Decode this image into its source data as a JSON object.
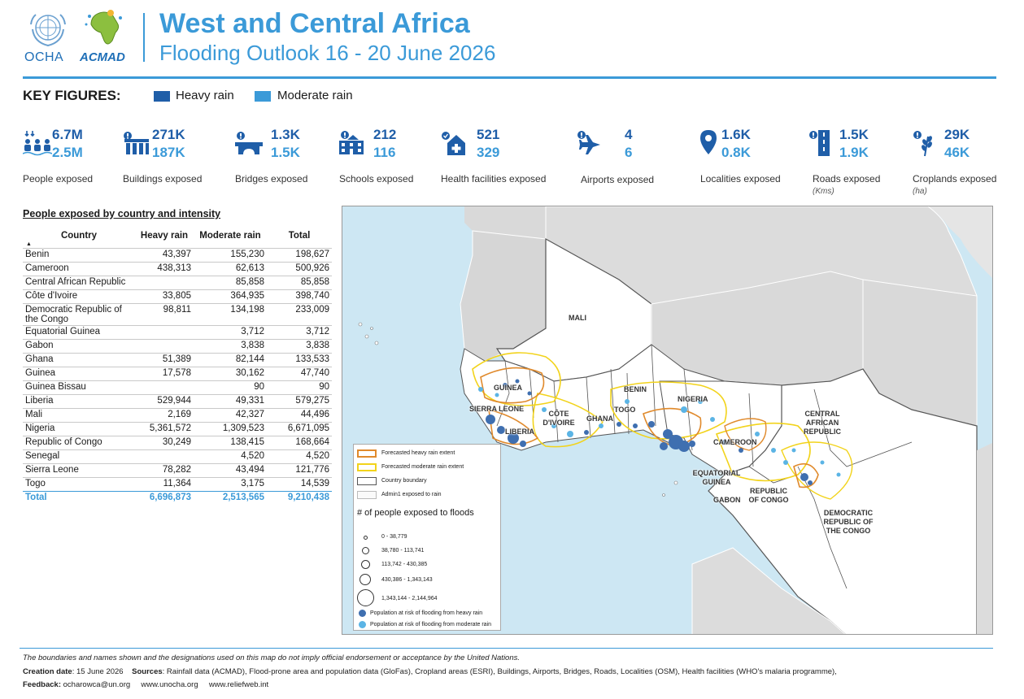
{
  "header": {
    "ocha_logo_text": "OCHA",
    "acmad_logo_text": "ACMAD",
    "title": "West and Central Africa",
    "subtitle": "Flooding Outlook 16 - 20 June 2026"
  },
  "key_figures": {
    "title": "KEY FIGURES:",
    "legend": [
      {
        "label": "Heavy rain",
        "color": "#1f5ea8"
      },
      {
        "label": "Moderate rain",
        "color": "#3b9ad8"
      }
    ],
    "items": [
      {
        "icon": "people-icon",
        "heavy": "6.7M",
        "moderate": "2.5M",
        "label": "People exposed",
        "unit": ""
      },
      {
        "icon": "building-icon",
        "heavy": "271K",
        "moderate": "187K",
        "label": "Buildings exposed",
        "unit": ""
      },
      {
        "icon": "bridge-icon",
        "heavy": "1.3K",
        "moderate": "1.5K",
        "label": "Bridges exposed",
        "unit": ""
      },
      {
        "icon": "school-icon",
        "heavy": "212",
        "moderate": "116",
        "label": "Schools exposed",
        "unit": ""
      },
      {
        "icon": "health-facility-icon",
        "heavy": "521",
        "moderate": "329",
        "label": "Health facilities exposed",
        "unit": ""
      },
      {
        "icon": "airport-icon",
        "heavy": "4",
        "moderate": "6",
        "label": "Airports exposed",
        "unit": ""
      },
      {
        "icon": "locality-pin-icon",
        "heavy": "1.6K",
        "moderate": "0.8K",
        "label": "Localities exposed",
        "unit": ""
      },
      {
        "icon": "road-icon",
        "heavy": "1.5K",
        "moderate": "1.9K",
        "label": "Roads exposed",
        "unit": "(Kms)"
      },
      {
        "icon": "cropland-icon",
        "heavy": "29K",
        "moderate": "46K",
        "label": "Croplands exposed",
        "unit": "(ha)"
      }
    ]
  },
  "table": {
    "title": "People exposed by country and intensity",
    "headers": [
      "Country",
      "Heavy rain",
      "Moderate rain",
      "Total"
    ],
    "rows": [
      [
        "Benin",
        "43,397",
        "155,230",
        "198,627"
      ],
      [
        "Cameroon",
        "438,313",
        "62,613",
        "500,926"
      ],
      [
        "Central African Republic",
        "",
        "85,858",
        "85,858"
      ],
      [
        "Côte d'Ivoire",
        "33,805",
        "364,935",
        "398,740"
      ],
      [
        "Democratic Republic of the Congo",
        "98,811",
        "134,198",
        "233,009"
      ],
      [
        "Equatorial Guinea",
        "",
        "3,712",
        "3,712"
      ],
      [
        "Gabon",
        "",
        "3,838",
        "3,838"
      ],
      [
        "Ghana",
        "51,389",
        "82,144",
        "133,533"
      ],
      [
        "Guinea",
        "17,578",
        "30,162",
        "47,740"
      ],
      [
        "Guinea Bissau",
        "",
        "90",
        "90"
      ],
      [
        "Liberia",
        "529,944",
        "49,331",
        "579,275"
      ],
      [
        "Mali",
        "2,169",
        "42,327",
        "44,496"
      ],
      [
        "Nigeria",
        "5,361,572",
        "1,309,523",
        "6,671,095"
      ],
      [
        "Republic of Congo",
        "30,249",
        "138,415",
        "168,664"
      ],
      [
        "Senegal",
        "",
        "4,520",
        "4,520"
      ],
      [
        "Sierra Leone",
        "78,282",
        "43,494",
        "121,776"
      ],
      [
        "Togo",
        "11,364",
        "3,175",
        "14,539"
      ]
    ],
    "total": [
      "Total",
      "6,696,873",
      "2,513,565",
      "9,210,438"
    ]
  },
  "map": {
    "country_labels": [
      "MALI",
      "GUINEA",
      "SIERRA LEONE",
      "LIBERIA",
      "CÔTE D'IVOIRE",
      "GHANA",
      "TOGO",
      "BENIN",
      "NIGERIA",
      "CAMEROON",
      "CENTRAL AFRICAN REPUBLIC",
      "EQUATORIAL GUINEA",
      "GABON",
      "REPUBLIC OF CONGO",
      "DEMOCRATIC REPUBLIC OF THE CONGO"
    ],
    "legend": {
      "heavy_extent": "Forecasted heavy rain extent",
      "moderate_extent": "Forecasted moderate rain extent",
      "country_boundary": "Country boundary",
      "admin1": "Admin1 exposed to rain",
      "size_title": "# of people exposed to floods",
      "size_classes": [
        "0 - 38,779",
        "38,780 - 113,741",
        "113,742 - 430,385",
        "430,386 - 1,343,143",
        "1,343,144 - 2,144,964"
      ],
      "heavy_dot": "Population at risk of flooding from heavy rain",
      "moderate_dot": "Population at risk of flooding from moderate rain",
      "heavy_extent_color": "#e08a2c",
      "moderate_extent_color": "#f2d31b",
      "heavy_dot_color": "#3f6fb0",
      "moderate_dot_color": "#5bb4e5"
    }
  },
  "footer": {
    "disclaimer": "The boundaries and names shown and the designations used on this map do not imply official endorsement or acceptance by the United Nations.",
    "creation_label": "Creation date",
    "creation_value": ": 15 June 2026",
    "sources_label": "Sources",
    "sources_value": ": Rainfall data (ACMAD), Flood-prone area and population data (GloFas), Cropland areas (ESRI), Buildings, Airports, Bridges, Roads, Localities (OSM), Health facilities (WHO's malaria programme),",
    "feedback_label": "Feedback:",
    "feedback_value": "ocharowca@un.org",
    "link1": "www.unocha.org",
    "link2": "www.reliefweb.int"
  }
}
